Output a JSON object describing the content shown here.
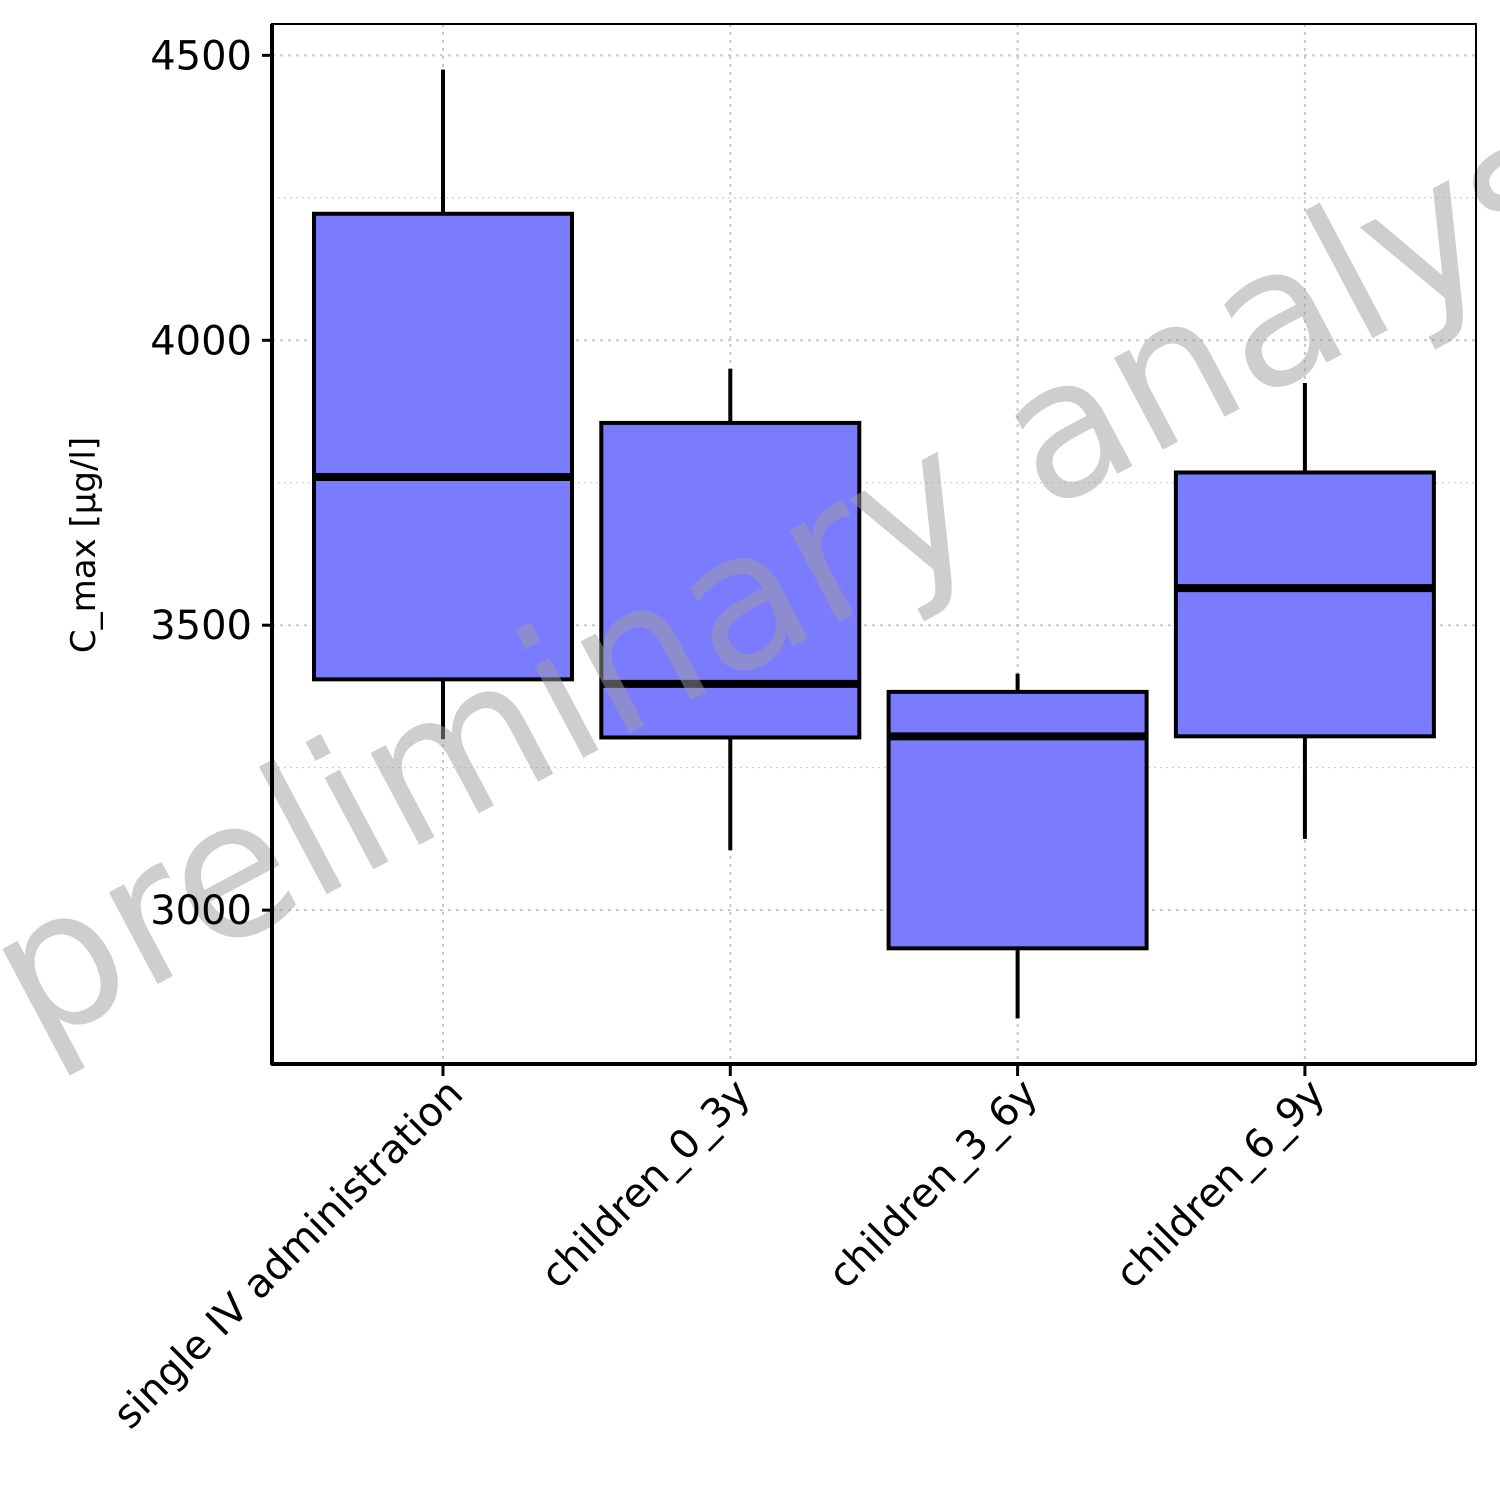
{
  "chart_data": {
    "type": "boxplot",
    "title": "",
    "xlabel": "",
    "ylabel": "C_max [µg/l]",
    "watermark": "preliminary analysis",
    "ylim": [
      2730,
      4555
    ],
    "y_ticks": [
      3000,
      3500,
      4000,
      4500
    ],
    "y_minor_gridlines": [
      3250,
      3750,
      4250
    ],
    "grid": true,
    "grid_style": "dotted",
    "categories": [
      "single IV administration",
      "children_0_3y",
      "children_3_6y",
      "children_6_9y"
    ],
    "boxes": [
      {
        "category": "single IV administration",
        "whisker_low": 3300,
        "q1": 3405,
        "median": 3760,
        "q3": 4222,
        "whisker_high": 4475
      },
      {
        "category": "children_0_3y",
        "whisker_low": 3105,
        "q1": 3303,
        "median": 3397,
        "q3": 3855,
        "whisker_high": 3950
      },
      {
        "category": "children_3_6y",
        "whisker_low": 2810,
        "q1": 2933,
        "median": 3305,
        "q3": 3383,
        "whisker_high": 3415
      },
      {
        "category": "children_6_9y",
        "whisker_low": 3125,
        "q1": 3305,
        "median": 3565,
        "q3": 3768,
        "whisker_high": 3925
      }
    ],
    "colors": {
      "box_fill": "#7b7bff",
      "outline": "#000000",
      "grid": "#c8c8c8",
      "watermark": "#9e9e9e"
    }
  }
}
